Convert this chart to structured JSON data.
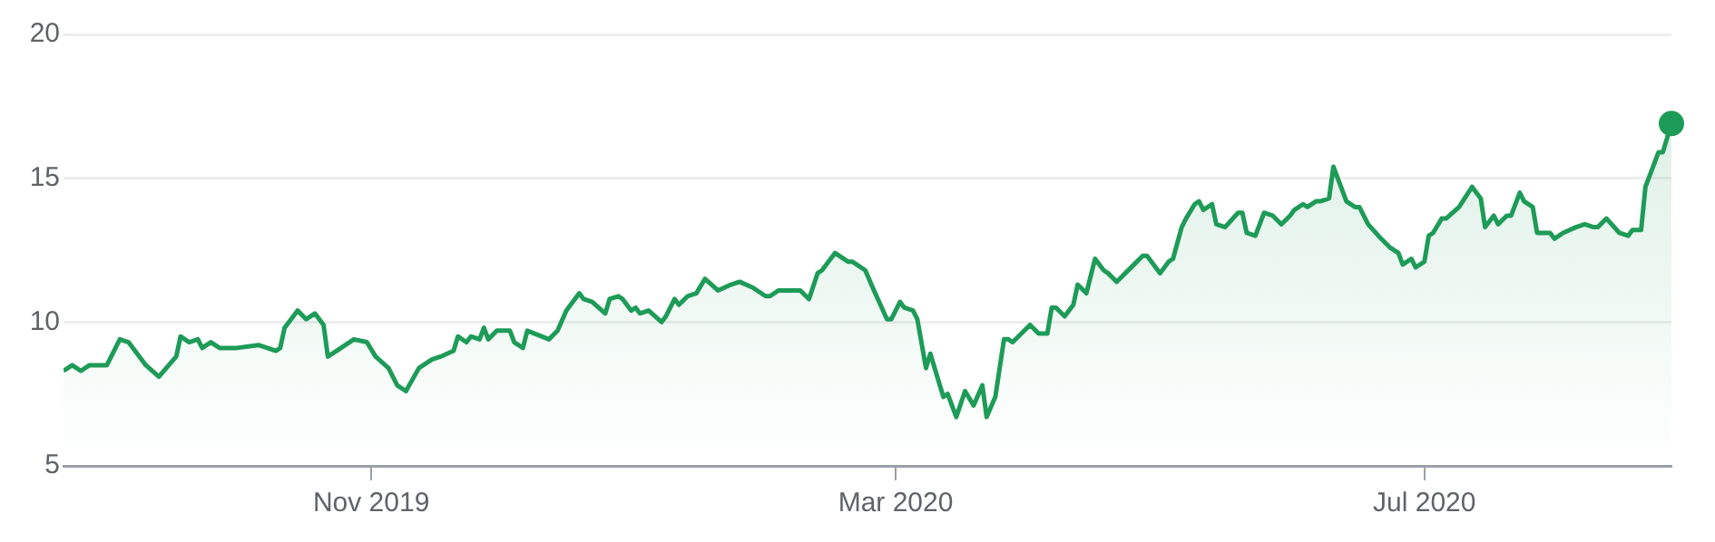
{
  "chart_data": {
    "type": "area",
    "xlim": [
      "2019-08-22",
      "2020-08-27"
    ],
    "ylim": [
      5,
      20
    ],
    "yticks": [
      5,
      10,
      15,
      20
    ],
    "xticks": [
      {
        "value": "2019-11-01",
        "label": "Nov 2019"
      },
      {
        "value": "2020-03-01",
        "label": "Mar 2020"
      },
      {
        "value": "2020-07-01",
        "label": "Jul 2020"
      }
    ],
    "grid": "y",
    "legend": false,
    "series": [
      {
        "color": "#1e9b58",
        "x": [
          "2019-08-22",
          "2019-08-24",
          "2019-08-26",
          "2019-08-28",
          "2019-09-01",
          "2019-09-04",
          "2019-09-06",
          "2019-09-10",
          "2019-09-13",
          "2019-09-17",
          "2019-09-18",
          "2019-09-20",
          "2019-09-22",
          "2019-09-23",
          "2019-09-25",
          "2019-09-27",
          "2019-10-01",
          "2019-10-06",
          "2019-10-10",
          "2019-10-11",
          "2019-10-12",
          "2019-10-15",
          "2019-10-17",
          "2019-10-19",
          "2019-10-21",
          "2019-10-22",
          "2019-10-24",
          "2019-10-28",
          "2019-10-31",
          "2019-11-02",
          "2019-11-05",
          "2019-11-07",
          "2019-11-09",
          "2019-11-12",
          "2019-11-15",
          "2019-11-17",
          "2019-11-20",
          "2019-11-21",
          "2019-11-23",
          "2019-11-24",
          "2019-11-26",
          "2019-11-27",
          "2019-11-28",
          "2019-11-30",
          "2019-12-03",
          "2019-12-04",
          "2019-12-06",
          "2019-12-07",
          "2019-12-12",
          "2019-12-14",
          "2019-12-16",
          "2019-12-19",
          "2019-12-20",
          "2019-12-22",
          "2019-12-25",
          "2019-12-26",
          "2019-12-28",
          "2019-12-29",
          "2019-12-31",
          "2020-01-01",
          "2020-01-02",
          "2020-01-04",
          "2020-01-07",
          "2020-01-08",
          "2020-01-10",
          "2020-01-11",
          "2020-01-13",
          "2020-01-15",
          "2020-01-17",
          "2020-01-20",
          "2020-01-23",
          "2020-01-25",
          "2020-01-28",
          "2020-01-31",
          "2020-02-01",
          "2020-02-03",
          "2020-02-06",
          "2020-02-08",
          "2020-02-10",
          "2020-02-12",
          "2020-02-13",
          "2020-02-16",
          "2020-02-19",
          "2020-02-20",
          "2020-02-23",
          "2020-02-25",
          "2020-02-28",
          "2020-02-29",
          "2020-03-02",
          "2020-03-03",
          "2020-03-05",
          "2020-03-06",
          "2020-03-08",
          "2020-03-09",
          "2020-03-12",
          "2020-03-13",
          "2020-03-15",
          "2020-03-17",
          "2020-03-19",
          "2020-03-21",
          "2020-03-22",
          "2020-03-24",
          "2020-03-26",
          "2020-03-27",
          "2020-03-28",
          "2020-03-30",
          "2020-04-01",
          "2020-04-03",
          "2020-04-05",
          "2020-04-06",
          "2020-04-07",
          "2020-04-09",
          "2020-04-11",
          "2020-04-12",
          "2020-04-14",
          "2020-04-16",
          "2020-04-18",
          "2020-04-19",
          "2020-04-21",
          "2020-04-23",
          "2020-04-25",
          "2020-04-27",
          "2020-04-28",
          "2020-05-01",
          "2020-05-03",
          "2020-05-04",
          "2020-05-06",
          "2020-05-07",
          "2020-05-09",
          "2020-05-10",
          "2020-05-11",
          "2020-05-13",
          "2020-05-14",
          "2020-05-16",
          "2020-05-19",
          "2020-05-20",
          "2020-05-21",
          "2020-05-23",
          "2020-05-25",
          "2020-05-27",
          "2020-05-29",
          "2020-05-31",
          "2020-06-01",
          "2020-06-03",
          "2020-06-04",
          "2020-06-06",
          "2020-06-07",
          "2020-06-09",
          "2020-06-10",
          "2020-06-13",
          "2020-06-15",
          "2020-06-16",
          "2020-06-18",
          "2020-06-21",
          "2020-06-23",
          "2020-06-25",
          "2020-06-26",
          "2020-06-28",
          "2020-06-29",
          "2020-07-01",
          "2020-07-02",
          "2020-07-03",
          "2020-07-05",
          "2020-07-06",
          "2020-07-09",
          "2020-07-12",
          "2020-07-14",
          "2020-07-15",
          "2020-07-17",
          "2020-07-18",
          "2020-07-20",
          "2020-07-21",
          "2020-07-23",
          "2020-07-24",
          "2020-07-26",
          "2020-07-27",
          "2020-07-30",
          "2020-07-31",
          "2020-08-02",
          "2020-08-05",
          "2020-08-07",
          "2020-08-09",
          "2020-08-10",
          "2020-08-12",
          "2020-08-15",
          "2020-08-17",
          "2020-08-18",
          "2020-08-20",
          "2020-08-21",
          "2020-08-23",
          "2020-08-24",
          "2020-08-25",
          "2020-08-27"
        ],
        "values": [
          8.3,
          8.5,
          8.3,
          8.5,
          8.5,
          9.4,
          9.3,
          8.5,
          8.1,
          8.8,
          9.5,
          9.3,
          9.4,
          9.1,
          9.3,
          9.1,
          9.1,
          9.2,
          9.0,
          9.1,
          9.8,
          10.4,
          10.1,
          10.3,
          9.9,
          8.8,
          9.0,
          9.4,
          9.3,
          8.8,
          8.4,
          7.8,
          7.6,
          8.4,
          8.7,
          8.8,
          9.0,
          9.5,
          9.3,
          9.5,
          9.4,
          9.8,
          9.4,
          9.7,
          9.7,
          9.3,
          9.1,
          9.7,
          9.4,
          9.7,
          10.4,
          11.0,
          10.8,
          10.7,
          10.3,
          10.8,
          10.9,
          10.8,
          10.4,
          10.5,
          10.3,
          10.4,
          10.0,
          10.2,
          10.8,
          10.6,
          10.9,
          11.0,
          11.5,
          11.1,
          11.3,
          11.4,
          11.2,
          10.9,
          10.9,
          11.1,
          11.1,
          11.1,
          10.8,
          11.7,
          11.8,
          12.4,
          12.1,
          12.1,
          11.8,
          11.1,
          10.1,
          10.1,
          10.7,
          10.5,
          10.4,
          10.1,
          8.4,
          8.9,
          7.4,
          7.5,
          6.7,
          7.6,
          7.1,
          7.8,
          6.7,
          7.4,
          9.4,
          9.4,
          9.3,
          9.6,
          9.9,
          9.6,
          9.6,
          10.5,
          10.5,
          10.2,
          10.6,
          11.3,
          11.0,
          12.2,
          11.8,
          11.7,
          11.4,
          11.7,
          12.0,
          12.3,
          12.3,
          11.7,
          12.1,
          12.2,
          13.3,
          13.6,
          14.1,
          14.2,
          13.9,
          14.1,
          13.4,
          13.3,
          13.8,
          13.8,
          13.1,
          13.0,
          13.8,
          13.7,
          13.4,
          13.7,
          13.9,
          14.1,
          14.0,
          14.2,
          14.2,
          14.3,
          15.4,
          14.2,
          14.0,
          14.0,
          13.4,
          12.9,
          12.6,
          12.4,
          12.0,
          12.2,
          11.9,
          12.1,
          13.0,
          13.1,
          13.6,
          13.6,
          14.0,
          14.7,
          14.3,
          13.3,
          13.7,
          13.4,
          13.7,
          13.7,
          14.5,
          14.2,
          14.0,
          13.1,
          13.1,
          12.9,
          13.1,
          13.3,
          13.4,
          13.3,
          13.3,
          13.6,
          13.1,
          13.0,
          13.2,
          13.2,
          14.7,
          15.5,
          15.9,
          15.9,
          16.9
        ]
      },
      {
        "type": "scatter",
        "color": "#1e9b58",
        "marker": "circle",
        "x": [
          "2020-08-27"
        ],
        "values": [
          16.9
        ]
      }
    ]
  }
}
